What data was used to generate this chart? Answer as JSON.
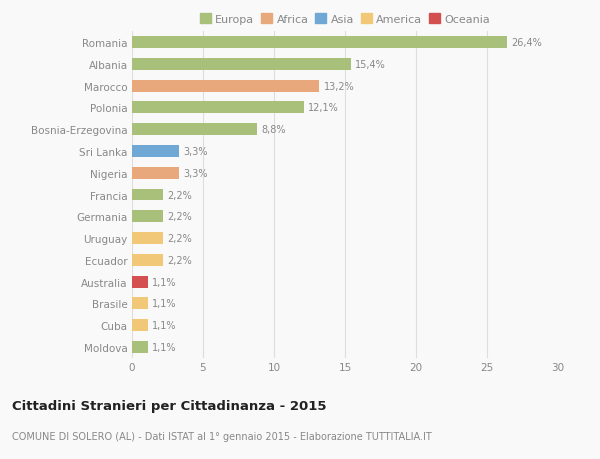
{
  "categories": [
    "Romania",
    "Albania",
    "Marocco",
    "Polonia",
    "Bosnia-Erzegovina",
    "Sri Lanka",
    "Nigeria",
    "Francia",
    "Germania",
    "Uruguay",
    "Ecuador",
    "Australia",
    "Brasile",
    "Cuba",
    "Moldova"
  ],
  "values": [
    26.4,
    15.4,
    13.2,
    12.1,
    8.8,
    3.3,
    3.3,
    2.2,
    2.2,
    2.2,
    2.2,
    1.1,
    1.1,
    1.1,
    1.1
  ],
  "bar_colors": [
    "#a8c07a",
    "#a8c07a",
    "#e8a87c",
    "#a8c07a",
    "#a8c07a",
    "#6fa8d4",
    "#e8a87c",
    "#a8c07a",
    "#a8c07a",
    "#f0c878",
    "#f0c878",
    "#d45050",
    "#f0c878",
    "#f0c878",
    "#a8c07a"
  ],
  "labels": [
    "26,4%",
    "15,4%",
    "13,2%",
    "12,1%",
    "8,8%",
    "3,3%",
    "3,3%",
    "2,2%",
    "2,2%",
    "2,2%",
    "2,2%",
    "1,1%",
    "1,1%",
    "1,1%",
    "1,1%"
  ],
  "legend_labels": [
    "Europa",
    "Africa",
    "Asia",
    "America",
    "Oceania"
  ],
  "legend_colors": [
    "#a8c07a",
    "#e8a87c",
    "#6fa8d4",
    "#f0c878",
    "#d45050"
  ],
  "title": "Cittadini Stranieri per Cittadinanza - 2015",
  "subtitle": "COMUNE DI SOLERO (AL) - Dati ISTAT al 1° gennaio 2015 - Elaborazione TUTTITALIA.IT",
  "xlim": [
    0,
    30
  ],
  "xticks": [
    0,
    5,
    10,
    15,
    20,
    25,
    30
  ],
  "background_color": "#f9f9f9",
  "grid_color": "#dddddd",
  "bar_height": 0.55,
  "text_color": "#888888",
  "title_color": "#222222",
  "subtitle_color": "#888888",
  "label_fontsize": 7.0,
  "ytick_fontsize": 7.5,
  "xtick_fontsize": 7.5,
  "legend_fontsize": 8.0,
  "title_fontsize": 9.5,
  "subtitle_fontsize": 7.0
}
